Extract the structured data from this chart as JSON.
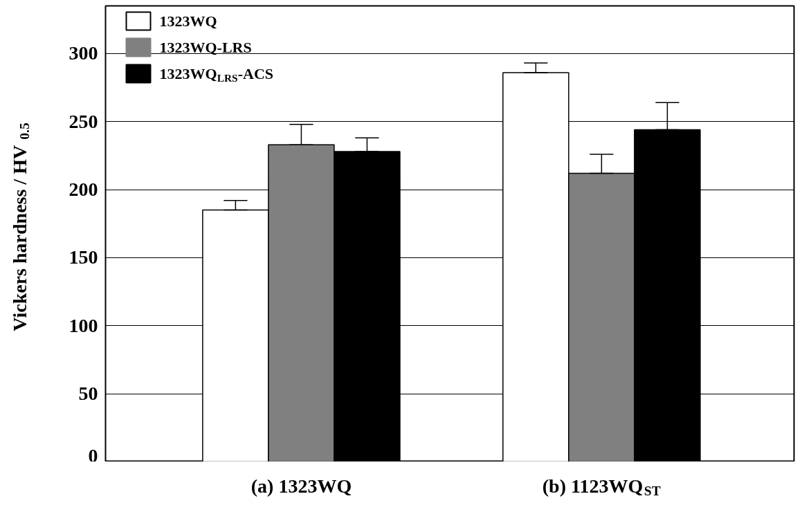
{
  "chart_data": {
    "type": "bar",
    "ylabel": "Vickers hardness  / HV$_{0.5}$",
    "categories": [
      "(a) 1323WQ",
      "(b) 1123WQ$_{ST}$"
    ],
    "series": [
      {
        "name": "1323WQ",
        "color": "#ffffff",
        "values": [
          185,
          286
        ],
        "errors": [
          [
            185,
            192
          ],
          [
            286,
            293
          ]
        ]
      },
      {
        "name": "1323WQ-LRS",
        "color": "#808080",
        "values": [
          233,
          212
        ],
        "errors": [
          [
            233,
            248
          ],
          [
            212,
            226
          ]
        ]
      },
      {
        "name": "1323WQ$_{LRS}$-ACS",
        "color": "#000000",
        "values": [
          228,
          244
        ],
        "errors": [
          [
            228,
            238
          ],
          [
            244,
            264
          ]
        ]
      }
    ],
    "ylim": [
      0,
      335
    ],
    "yticks": [
      0,
      50,
      100,
      150,
      200,
      250,
      300
    ],
    "grid": "y",
    "legend": "top left"
  }
}
